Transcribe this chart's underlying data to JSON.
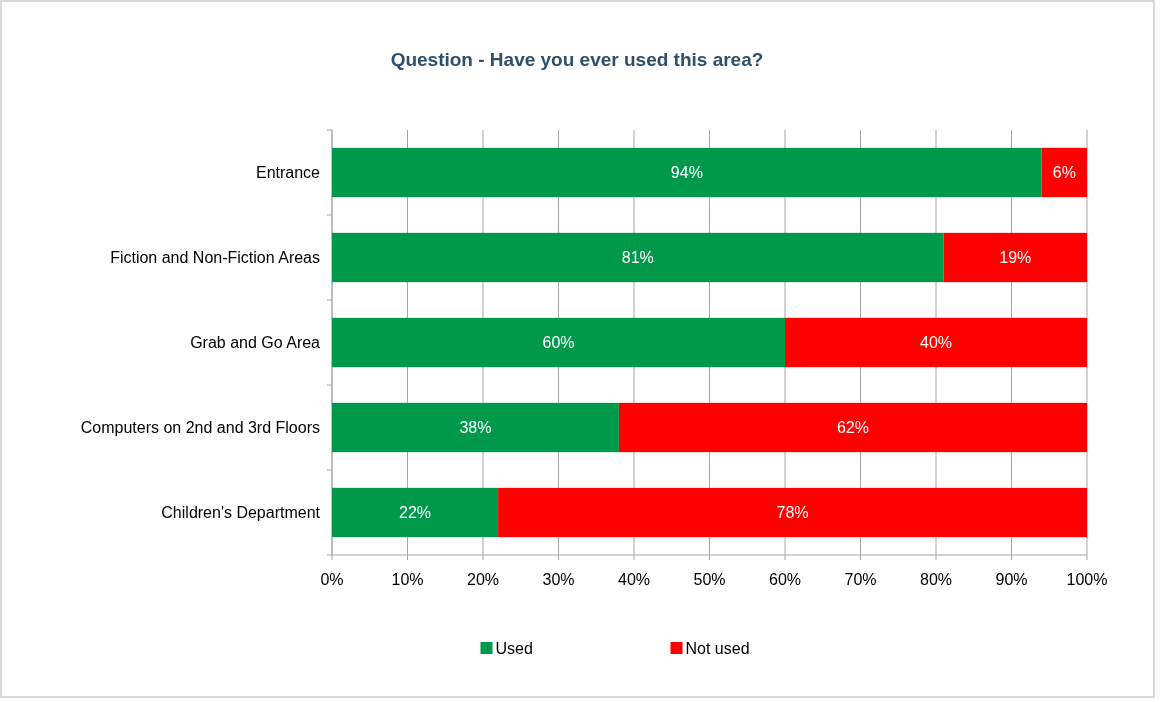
{
  "chart_data": {
    "type": "bar",
    "orientation": "horizontal",
    "stacked": true,
    "title": "Question - Have you ever used this area?",
    "categories": [
      "Entrance",
      "Fiction and Non-Fiction Areas",
      "Grab and Go Area",
      "Computers on 2nd and 3rd Floors",
      "Children's Department"
    ],
    "series": [
      {
        "name": "Used",
        "color": "#00994c",
        "values": [
          94,
          81,
          60,
          38,
          22
        ],
        "value_labels": [
          "94%",
          "81%",
          "60%",
          "38%",
          "22%"
        ]
      },
      {
        "name": "Not used",
        "color": "#ff0000",
        "values": [
          6,
          19,
          40,
          62,
          78
        ],
        "value_labels": [
          "6%",
          "19%",
          "40%",
          "62%",
          "78%"
        ]
      }
    ],
    "xlim": [
      0,
      100
    ],
    "xticks": [
      {
        "value": 0,
        "label": "0%"
      },
      {
        "value": 10,
        "label": "10%"
      },
      {
        "value": 20,
        "label": "20%"
      },
      {
        "value": 30,
        "label": "30%"
      },
      {
        "value": 40,
        "label": "40%"
      },
      {
        "value": 50,
        "label": "50%"
      },
      {
        "value": 60,
        "label": "60%"
      },
      {
        "value": 70,
        "label": "70%"
      },
      {
        "value": 80,
        "label": "80%"
      },
      {
        "value": 90,
        "label": "90%"
      },
      {
        "value": 100,
        "label": "100%"
      }
    ],
    "grid": "x",
    "legend": "bottom"
  }
}
